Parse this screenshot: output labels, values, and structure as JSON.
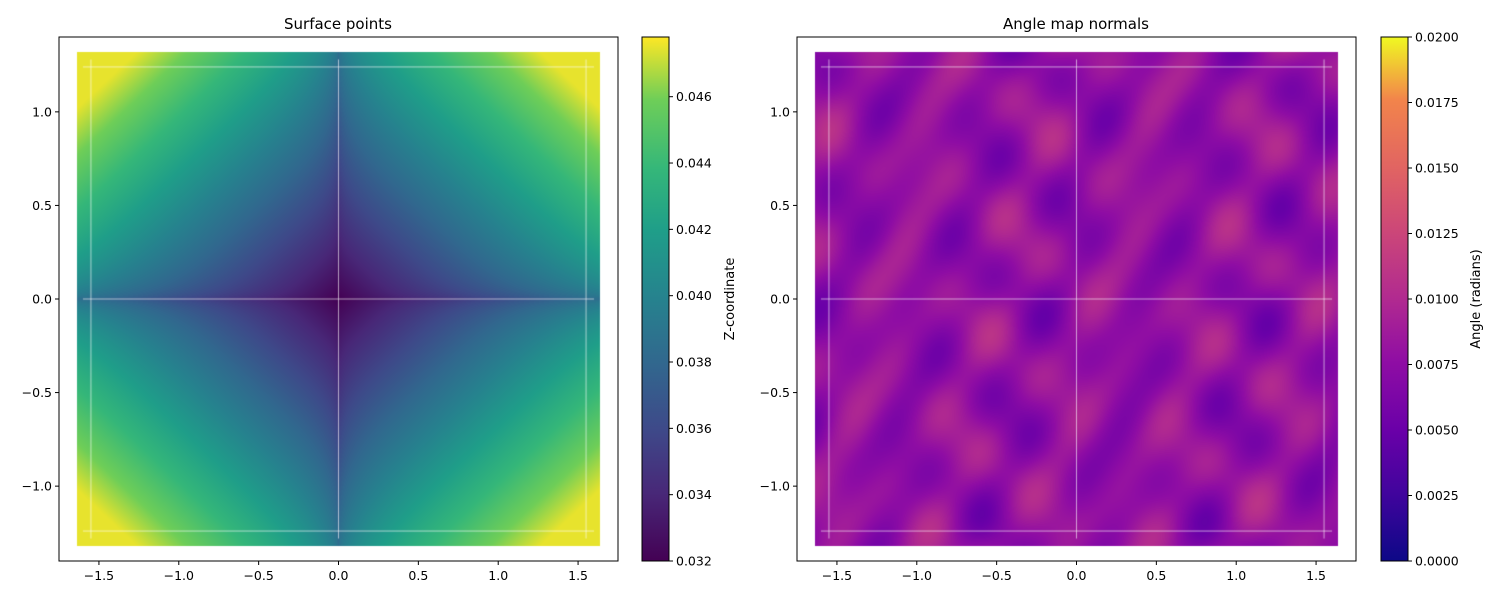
{
  "chart_data": [
    {
      "type": "heatmap",
      "title": "Surface points",
      "xlabel": "",
      "ylabel": "",
      "xlim": [
        -1.75,
        1.75
      ],
      "ylim": [
        -1.4,
        1.4
      ],
      "x_ticks": [
        -1.5,
        -1.0,
        -0.5,
        0.0,
        0.5,
        1.0,
        1.5
      ],
      "x_tick_labels": [
        "−1.5",
        "−1.0",
        "−0.5",
        "0.0",
        "0.5",
        "1.0",
        "1.5"
      ],
      "y_ticks": [
        1.0,
        0.5,
        0.0,
        -0.5,
        -1.0
      ],
      "y_tick_labels": [
        "1.0",
        "0.5",
        "0.0",
        "−0.5",
        "−1.0"
      ],
      "data_extent": {
        "x": [
          -1.6,
          1.6
        ],
        "y": [
          -1.28,
          1.28
        ]
      },
      "value_range": [
        0.032,
        0.0475
      ],
      "description_of_field": "z increases with distance from center (min ~0.032 at origin, max ~0.047 at corners)",
      "colormap": "viridis",
      "colorbar": {
        "label": "Z-coordinate",
        "vmin": 0.032,
        "vmax": 0.0478,
        "ticks": [
          0.032,
          0.034,
          0.036,
          0.038,
          0.04,
          0.042,
          0.044,
          0.046
        ],
        "tick_labels": [
          "0.032",
          "0.034",
          "0.036",
          "0.038",
          "0.040",
          "0.042",
          "0.044",
          "0.046"
        ]
      }
    },
    {
      "type": "heatmap",
      "title": "Angle map normals",
      "xlabel": "",
      "ylabel": "",
      "xlim": [
        -1.75,
        1.75
      ],
      "ylim": [
        -1.4,
        1.4
      ],
      "x_ticks": [
        -1.5,
        -1.0,
        -0.5,
        0.0,
        0.5,
        1.0,
        1.5
      ],
      "x_tick_labels": [
        "−1.5",
        "−1.0",
        "−0.5",
        "0.0",
        "0.5",
        "1.0",
        "1.5"
      ],
      "y_ticks": [
        1.0,
        0.5,
        0.0,
        -0.5,
        -1.0
      ],
      "y_tick_labels": [
        "1.0",
        "0.5",
        "0.0",
        "−0.5",
        "−1.0"
      ],
      "data_extent": {
        "x": [
          -1.6,
          1.6
        ],
        "y": [
          -1.28,
          1.28
        ]
      },
      "value_range": [
        0.004,
        0.0115
      ],
      "description_of_field": "noisy angle values mostly 0.005-0.011 radians",
      "colormap": "plasma",
      "colorbar": {
        "label": "Angle (radians)",
        "vmin": 0.0,
        "vmax": 0.02,
        "ticks": [
          0.0,
          0.0025,
          0.005,
          0.0075,
          0.01,
          0.0125,
          0.015,
          0.0175,
          0.02
        ],
        "tick_labels": [
          "0.0000",
          "0.0025",
          "0.0050",
          "0.0075",
          "0.0100",
          "0.0125",
          "0.0150",
          "0.0175",
          "0.0200"
        ]
      }
    }
  ]
}
